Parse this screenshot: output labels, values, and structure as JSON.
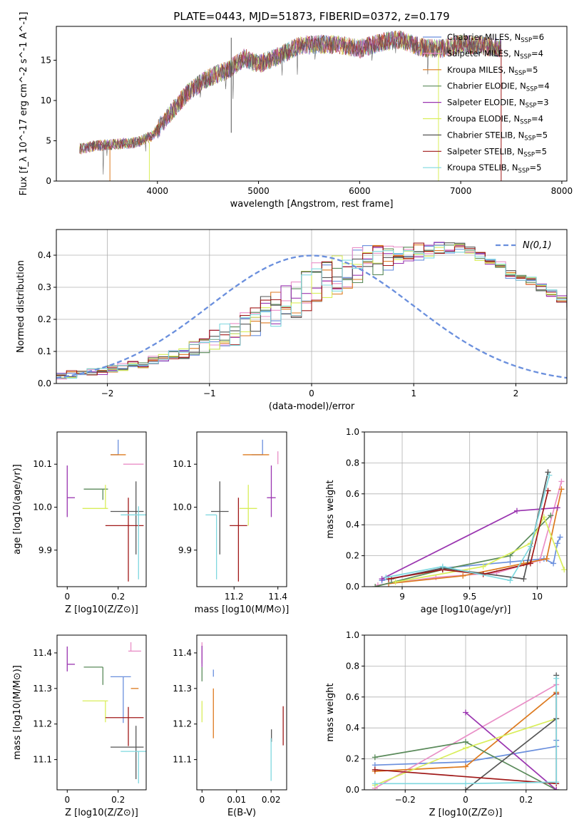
{
  "figure": {
    "title": "PLATE=0443, MJD=51873, FIBERID=0372, z=0.179"
  },
  "palette": {
    "Chabrier MILES": "#6a8fdd",
    "Salpeter MILES": "#e98fc7",
    "Kroupa MILES": "#dd7a1f",
    "Chabrier ELODIE": "#5a8a5a",
    "Salpeter ELODIE": "#9a35b0",
    "Kroupa ELODIE": "#d9ee5a",
    "Chabrier STELIB": "#555555",
    "Salpeter STELIB": "#a01818",
    "Kroupa STELIB": "#7fd8df"
  },
  "chart_data": [
    {
      "type": "line",
      "id": "spectrum",
      "title": "PLATE=0443, MJD=51873, FIBERID=0372, z=0.179",
      "xlabel": "wavelength [Angstrom, rest frame]",
      "ylabel": "Flux [f_λ 10^-17 erg cm^-2 s^-1 A^-1]",
      "xlim": [
        3000,
        8050
      ],
      "ylim": [
        0,
        19.2
      ],
      "xticks": [
        4000,
        5000,
        6000,
        7000,
        8000
      ],
      "yticks": [
        0,
        5,
        10,
        15
      ],
      "grid": false,
      "legend_position": "right",
      "x": [
        3230,
        3400,
        3600,
        3800,
        3950,
        4100,
        4300,
        4500,
        4700,
        4860,
        5000,
        5200,
        5400,
        5600,
        5800,
        6000,
        6200,
        6400,
        6600,
        6800,
        7000,
        7200,
        7400
      ],
      "values": [
        4.0,
        4.4,
        4.6,
        4.8,
        5.6,
        8.0,
        11.0,
        12.8,
        13.8,
        15.3,
        14.5,
        15.5,
        16.8,
        17.0,
        16.9,
        16.4,
        17.2,
        17.6,
        16.6,
        16.4,
        17.0,
        16.8,
        16.5
      ],
      "series": [
        {
          "name": "Chabrier MILES",
          "label": "Chabrier MILES, N",
          "sub": "SSP",
          "n": "=6"
        },
        {
          "name": "Salpeter MILES",
          "label": "Salpeter MILES, N",
          "sub": "SSP",
          "n": "=4"
        },
        {
          "name": "Kroupa MILES",
          "label": "Kroupa MILES, N",
          "sub": "SSP",
          "n": "=5"
        },
        {
          "name": "Chabrier ELODIE",
          "label": "Chabrier ELODIE, N",
          "sub": "SSP",
          "n": "=4"
        },
        {
          "name": "Salpeter ELODIE",
          "label": "Salpeter ELODIE, N",
          "sub": "SSP",
          "n": "=3"
        },
        {
          "name": "Kroupa ELODIE",
          "label": "Kroupa ELODIE, N",
          "sub": "SSP",
          "n": "=4"
        },
        {
          "name": "Chabrier STELIB",
          "label": "Chabrier STELIB, N",
          "sub": "SSP",
          "n": "=5"
        },
        {
          "name": "Salpeter STELIB",
          "label": "Salpeter STELIB, N",
          "sub": "SSP",
          "n": "=5"
        },
        {
          "name": "Kroupa STELIB",
          "label": "Kroupa STELIB, N",
          "sub": "SSP",
          "n": "=5"
        }
      ]
    },
    {
      "type": "histogram",
      "id": "residuals",
      "xlabel": "(data-model)/error",
      "ylabel": "Normed distribution",
      "xlim": [
        -2.5,
        2.5
      ],
      "ylim": [
        0,
        0.48
      ],
      "xticks": [
        -2,
        -1,
        0,
        1,
        2
      ],
      "yticks": [
        0.0,
        0.1,
        0.2,
        0.3,
        0.4
      ],
      "grid": true,
      "legend_position": "top-right",
      "legend": "N(0,1)",
      "reference_curve": {
        "name": "N(0,1)",
        "mean": 0,
        "sd": 1,
        "style": "dashed"
      },
      "bin_width": 0.1,
      "bin_start": -2.5,
      "envelope": [
        0.025,
        0.028,
        0.03,
        0.035,
        0.04,
        0.045,
        0.05,
        0.055,
        0.062,
        0.07,
        0.078,
        0.088,
        0.098,
        0.11,
        0.12,
        0.135,
        0.15,
        0.16,
        0.175,
        0.19,
        0.22,
        0.235,
        0.255,
        0.27,
        0.29,
        0.32,
        0.33,
        0.34,
        0.355,
        0.37,
        0.38,
        0.385,
        0.39,
        0.395,
        0.4,
        0.41,
        0.415,
        0.42,
        0.425,
        0.42,
        0.41,
        0.395,
        0.38,
        0.37,
        0.34,
        0.33,
        0.32,
        0.3,
        0.28,
        0.265,
        0.24,
        0.22,
        0.2,
        0.18,
        0.16,
        0.14,
        0.125,
        0.1,
        0.08,
        0.07,
        0.06,
        0.05,
        0.04,
        0.035,
        0.03,
        0.028,
        0.025,
        0.022,
        0.02,
        0.02
      ]
    },
    {
      "type": "scatter",
      "id": "age-vs-Z",
      "xlabel": "Z [log10(Z/Z⊙)]",
      "ylabel": "age [log10(age/yr)]",
      "xlim": [
        -0.04,
        0.31
      ],
      "ylim": [
        9.815,
        10.175
      ],
      "xticks": [
        0.0,
        0.2
      ],
      "yticks": [
        9.9,
        10.0,
        10.1
      ],
      "grid": false,
      "points": [
        {
          "series": "Chabrier MILES",
          "x": 0.2,
          "xerr": [
            0.03,
            0.0
          ],
          "y": 10.122,
          "yerr": [
            0.0,
            0.035
          ]
        },
        {
          "series": "Salpeter MILES",
          "x": 0.25,
          "xerr": [
            0.03,
            0.05
          ],
          "y": 10.1,
          "yerr": [
            0.0,
            0.0
          ]
        },
        {
          "series": "Kroupa MILES",
          "x": 0.2,
          "xerr": [
            0.03,
            0.03
          ],
          "y": 10.122,
          "yerr": [
            0.0,
            0.0
          ]
        },
        {
          "series": "Chabrier ELODIE",
          "x": 0.14,
          "xerr": [
            0.075,
            0.02
          ],
          "y": 10.042,
          "yerr": [
            0.025,
            0.0
          ]
        },
        {
          "series": "Salpeter ELODIE",
          "x": 0.0,
          "xerr": [
            0.0,
            0.03
          ],
          "y": 10.022,
          "yerr": [
            0.045,
            0.075
          ]
        },
        {
          "series": "Kroupa ELODIE",
          "x": 0.15,
          "xerr": [
            0.09,
            0.01
          ],
          "y": 9.997,
          "yerr": [
            0.0,
            0.055
          ]
        },
        {
          "series": "Chabrier STELIB",
          "x": 0.27,
          "xerr": [
            0.1,
            0.03
          ],
          "y": 9.99,
          "yerr": [
            0.1,
            0.07
          ]
        },
        {
          "series": "Salpeter STELIB",
          "x": 0.24,
          "xerr": [
            0.09,
            0.06
          ],
          "y": 9.957,
          "yerr": [
            0.13,
            0.065
          ]
        },
        {
          "series": "Kroupa STELIB",
          "x": 0.28,
          "xerr": [
            0.07,
            0.03
          ],
          "y": 9.982,
          "yerr": [
            0.15,
            0.02
          ]
        }
      ]
    },
    {
      "type": "scatter",
      "id": "age-vs-mass",
      "xlabel": "mass [log10(M/M⊙)]",
      "ylabel": "",
      "xlim": [
        11.03,
        11.44
      ],
      "ylim": [
        9.815,
        10.175
      ],
      "xticks": [
        11.2,
        11.4
      ],
      "yticks": [
        9.9,
        10.0,
        10.1
      ],
      "grid": false,
      "points": [
        {
          "series": "Chabrier MILES",
          "x": 11.33,
          "xerr": [
            0.05,
            0.0
          ],
          "y": 10.122,
          "yerr": [
            0.0,
            0.035
          ]
        },
        {
          "series": "Salpeter MILES",
          "x": 11.4,
          "xerr": [
            0.0,
            0.0
          ],
          "y": 10.1,
          "yerr": [
            0.0,
            0.03
          ]
        },
        {
          "series": "Kroupa MILES",
          "x": 11.3,
          "xerr": [
            0.06,
            0.06
          ],
          "y": 10.122,
          "yerr": [
            0.0,
            0.0
          ]
        },
        {
          "series": "Chabrier ELODIE",
          "x": 11.36,
          "xerr": [
            0.0,
            0.0
          ],
          "y": 10.042,
          "yerr": [
            0.0,
            0.0
          ]
        },
        {
          "series": "Salpeter ELODIE",
          "x": 11.37,
          "xerr": [
            0.02,
            0.02
          ],
          "y": 10.022,
          "yerr": [
            0.045,
            0.075
          ]
        },
        {
          "series": "Kroupa ELODIE",
          "x": 11.265,
          "xerr": [
            0.04,
            0.04
          ],
          "y": 9.997,
          "yerr": [
            0.04,
            0.055
          ]
        },
        {
          "series": "Chabrier STELIB",
          "x": 11.135,
          "xerr": [
            0.04,
            0.04
          ],
          "y": 9.99,
          "yerr": [
            0.1,
            0.07
          ]
        },
        {
          "series": "Salpeter STELIB",
          "x": 11.22,
          "xerr": [
            0.04,
            0.04
          ],
          "y": 9.957,
          "yerr": [
            0.13,
            0.065
          ]
        },
        {
          "series": "Kroupa STELIB",
          "x": 11.12,
          "xerr": [
            0.05,
            0.0
          ],
          "y": 9.982,
          "yerr": [
            0.15,
            0.0
          ]
        }
      ]
    },
    {
      "type": "line",
      "id": "weight-vs-age",
      "xlabel": "age [log10(age/yr)]",
      "ylabel": "mass weight",
      "xlim": [
        8.72,
        10.22
      ],
      "ylim": [
        0,
        1.0
      ],
      "xticks": [
        9.0,
        9.5,
        10.0
      ],
      "yticks": [
        0.0,
        0.2,
        0.4,
        0.6,
        0.8,
        1.0
      ],
      "grid": true,
      "series": [
        {
          "name": "Chabrier MILES",
          "x": [
            8.85,
            9.3,
            9.8,
            10.05,
            10.12,
            10.15,
            10.17
          ],
          "y": [
            0.04,
            0.12,
            0.16,
            0.18,
            0.15,
            0.28,
            0.32
          ]
        },
        {
          "name": "Salpeter MILES",
          "x": [
            8.82,
            9.25,
            9.7,
            10.02,
            10.18
          ],
          "y": [
            0.01,
            0.06,
            0.09,
            0.17,
            0.68
          ]
        },
        {
          "name": "Kroupa MILES",
          "x": [
            8.9,
            9.45,
            9.9,
            10.07,
            10.18
          ],
          "y": [
            0.02,
            0.07,
            0.15,
            0.18,
            0.63
          ]
        },
        {
          "name": "Chabrier ELODIE",
          "x": [
            8.8,
            9.3,
            9.8,
            10.1
          ],
          "y": [
            0.0,
            0.11,
            0.2,
            0.46
          ]
        },
        {
          "name": "Salpeter ELODIE",
          "x": [
            8.85,
            9.85,
            10.15
          ],
          "y": [
            0.05,
            0.49,
            0.51
          ]
        },
        {
          "name": "Kroupa ELODIE",
          "x": [
            8.95,
            9.6,
            9.95,
            10.05,
            10.2
          ],
          "y": [
            0.03,
            0.13,
            0.28,
            0.45,
            0.11
          ]
        },
        {
          "name": "Chabrier STELIB",
          "x": [
            8.92,
            9.3,
            9.9,
            10.08
          ],
          "y": [
            0.05,
            0.12,
            0.05,
            0.74
          ]
        },
        {
          "name": "Salpeter STELIB",
          "x": [
            8.9,
            9.3,
            9.6,
            9.95,
            10.08
          ],
          "y": [
            0.05,
            0.11,
            0.08,
            0.15,
            0.62
          ]
        },
        {
          "name": "Kroupa STELIB",
          "x": [
            8.88,
            9.3,
            9.8,
            9.95,
            10.09
          ],
          "y": [
            0.06,
            0.13,
            0.04,
            0.26,
            0.72
          ]
        }
      ]
    },
    {
      "type": "scatter",
      "id": "mass-vs-Z",
      "xlabel": "Z [log10(Z/Z⊙)]",
      "ylabel": "mass [log10(M/M⊙)]",
      "xlim": [
        -0.04,
        0.31
      ],
      "ylim": [
        11.015,
        11.45
      ],
      "xticks": [
        0.0,
        0.2
      ],
      "yticks": [
        11.1,
        11.2,
        11.3,
        11.4
      ],
      "grid": false,
      "points": [
        {
          "series": "Chabrier MILES",
          "x": 0.22,
          "xerr": [
            0.05,
            0.03
          ],
          "y": 11.333,
          "yerr": [
            0.13,
            0.0
          ]
        },
        {
          "series": "Salpeter MILES",
          "x": 0.25,
          "xerr": [
            0.01,
            0.04
          ],
          "y": 11.405,
          "yerr": [
            0.0,
            0.025
          ]
        },
        {
          "series": "Kroupa MILES",
          "x": 0.25,
          "xerr": [
            0.0,
            0.03
          ],
          "y": 11.3,
          "yerr": [
            0.0,
            0.0
          ]
        },
        {
          "series": "Chabrier ELODIE",
          "x": 0.14,
          "xerr": [
            0.075,
            0.0
          ],
          "y": 11.36,
          "yerr": [
            0.05,
            0.0
          ]
        },
        {
          "series": "Salpeter ELODIE",
          "x": 0.0,
          "xerr": [
            0.0,
            0.03
          ],
          "y": 11.368,
          "yerr": [
            0.02,
            0.05
          ]
        },
        {
          "series": "Kroupa ELODIE",
          "x": 0.15,
          "xerr": [
            0.09,
            0.01
          ],
          "y": 11.265,
          "yerr": [
            0.06,
            0.0
          ]
        },
        {
          "series": "Chabrier STELIB",
          "x": 0.27,
          "xerr": [
            0.1,
            0.03
          ],
          "y": 11.135,
          "yerr": [
            0.09,
            0.06
          ]
        },
        {
          "series": "Salpeter STELIB",
          "x": 0.24,
          "xerr": [
            0.09,
            0.06
          ],
          "y": 11.218,
          "yerr": [
            0.08,
            0.03
          ]
        },
        {
          "series": "Kroupa STELIB",
          "x": 0.28,
          "xerr": [
            0.07,
            0.03
          ],
          "y": 11.123,
          "yerr": [
            0.09,
            0.0
          ]
        }
      ]
    },
    {
      "type": "scatter",
      "id": "mass-vs-EBV",
      "xlabel": "E(B-V)",
      "ylabel": "",
      "xlim": [
        -0.0015,
        0.0245
      ],
      "ylim": [
        11.015,
        11.45
      ],
      "xticks": [
        0.0,
        0.01,
        0.02
      ],
      "yticks": [
        11.1,
        11.2,
        11.3,
        11.4
      ],
      "grid": false,
      "points": [
        {
          "series": "Chabrier MILES",
          "x": 0.0033,
          "y": 11.333,
          "yerr": [
            0.0,
            0.02
          ]
        },
        {
          "series": "Salpeter MILES",
          "x": 0.0,
          "y": 11.4,
          "yerr": [
            0.03,
            0.03
          ]
        },
        {
          "series": "Kroupa MILES",
          "x": 0.0033,
          "y": 11.3,
          "yerr": [
            0.14,
            0.0
          ]
        },
        {
          "series": "Chabrier ELODIE",
          "x": 0.0,
          "y": 11.36,
          "yerr": [
            0.04,
            0.0
          ]
        },
        {
          "series": "Salpeter ELODIE",
          "x": 0.0,
          "y": 11.39,
          "yerr": [
            0.03,
            0.03
          ]
        },
        {
          "series": "Kroupa ELODIE",
          "x": 0.0,
          "y": 11.265,
          "yerr": [
            0.06,
            0.0
          ]
        },
        {
          "series": "Chabrier STELIB",
          "x": 0.0201,
          "y": 11.15,
          "yerr": [
            0.0,
            0.035
          ]
        },
        {
          "series": "Salpeter STELIB",
          "x": 0.0235,
          "y": 11.19,
          "yerr": [
            0.05,
            0.06
          ]
        },
        {
          "series": "Kroupa STELIB",
          "x": 0.02,
          "y": 11.1,
          "yerr": [
            0.06,
            0.06
          ]
        }
      ]
    },
    {
      "type": "line",
      "id": "weight-vs-Z",
      "xlabel": "Z [log10(Z/Z⊙)]",
      "ylabel": "mass weight",
      "xlim": [
        -0.335,
        0.335
      ],
      "ylim": [
        0,
        1.0
      ],
      "xticks": [
        -0.2,
        0.0,
        0.2
      ],
      "yticks": [
        0.0,
        0.2,
        0.4,
        0.6,
        0.8,
        1.0
      ],
      "grid": true,
      "series": [
        {
          "name": "Chabrier MILES",
          "x": [
            -0.3,
            0.0,
            0.3,
            0.3
          ],
          "y": [
            0.16,
            0.18,
            0.28,
            0.32
          ]
        },
        {
          "name": "Salpeter MILES",
          "x": [
            -0.3,
            0.3
          ],
          "y": [
            0.01,
            0.68
          ]
        },
        {
          "name": "Kroupa MILES",
          "x": [
            -0.3,
            0.0,
            0.3
          ],
          "y": [
            0.12,
            0.15,
            0.63
          ]
        },
        {
          "name": "Chabrier ELODIE",
          "x": [
            -0.3,
            0.0,
            0.3
          ],
          "y": [
            0.21,
            0.31,
            0.0
          ]
        },
        {
          "name": "Salpeter ELODIE",
          "x": [
            0.0,
            0.3
          ],
          "y": [
            0.5,
            0.0
          ]
        },
        {
          "name": "Kroupa ELODIE",
          "x": [
            -0.3,
            0.0,
            0.3
          ],
          "y": [
            0.03,
            0.27,
            0.46
          ]
        },
        {
          "name": "Chabrier STELIB",
          "x": [
            0.0,
            0.3,
            0.3
          ],
          "y": [
            0.0,
            0.46,
            0.74
          ]
        },
        {
          "name": "Salpeter STELIB",
          "x": [
            -0.3,
            0.3,
            0.3
          ],
          "y": [
            0.13,
            0.04,
            0.62
          ]
        },
        {
          "name": "Kroupa STELIB",
          "x": [
            -0.3,
            0.0,
            0.3,
            0.3
          ],
          "y": [
            0.04,
            0.04,
            0.05,
            0.72
          ]
        }
      ]
    }
  ]
}
